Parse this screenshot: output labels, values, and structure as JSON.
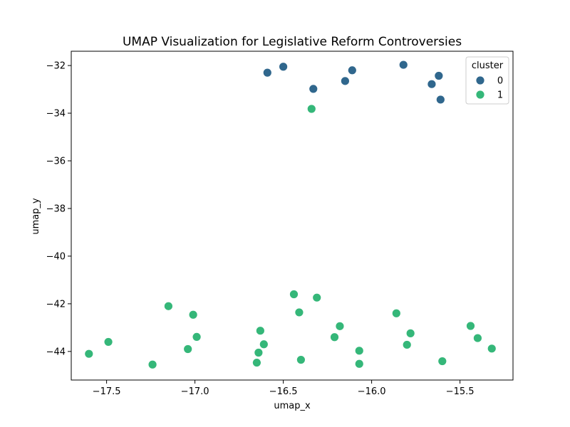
{
  "chart_data": {
    "type": "scatter",
    "title": "UMAP Visualization for Legislative Reform Controversies",
    "xlabel": "umap_x",
    "ylabel": "umap_y",
    "xlim": [
      -17.7,
      -15.2
    ],
    "ylim": [
      -45.2,
      -31.4
    ],
    "xticks": [
      -17.5,
      -17.0,
      -16.5,
      -16.0,
      -15.5
    ],
    "xtick_labels": [
      "−17.5",
      "−17.0",
      "−16.5",
      "−16.0",
      "−15.5"
    ],
    "yticks": [
      -44,
      -42,
      -40,
      -38,
      -36,
      -34,
      -32
    ],
    "ytick_labels": [
      "−44",
      "−42",
      "−40",
      "−38",
      "−36",
      "−34",
      "−32"
    ],
    "grid": false,
    "legend": {
      "title": "cluster",
      "placement": "top-right"
    },
    "series": [
      {
        "name": "0",
        "color": "#30678d",
        "points": [
          [
            -16.59,
            -32.3
          ],
          [
            -16.5,
            -32.05
          ],
          [
            -16.33,
            -32.98
          ],
          [
            -16.15,
            -32.65
          ],
          [
            -16.11,
            -32.2
          ],
          [
            -15.82,
            -31.97
          ],
          [
            -15.66,
            -32.78
          ],
          [
            -15.62,
            -32.43
          ],
          [
            -15.61,
            -33.43
          ]
        ]
      },
      {
        "name": "1",
        "color": "#35b779",
        "points": [
          [
            -16.34,
            -33.82
          ],
          [
            -17.6,
            -44.1
          ],
          [
            -17.49,
            -43.6
          ],
          [
            -17.24,
            -44.55
          ],
          [
            -17.15,
            -42.1
          ],
          [
            -17.04,
            -43.9
          ],
          [
            -17.01,
            -42.46
          ],
          [
            -16.99,
            -43.39
          ],
          [
            -16.65,
            -44.47
          ],
          [
            -16.64,
            -44.05
          ],
          [
            -16.63,
            -43.13
          ],
          [
            -16.61,
            -43.7
          ],
          [
            -16.44,
            -41.6
          ],
          [
            -16.41,
            -42.36
          ],
          [
            -16.4,
            -44.35
          ],
          [
            -16.31,
            -41.74
          ],
          [
            -16.21,
            -43.4
          ],
          [
            -16.18,
            -42.94
          ],
          [
            -16.07,
            -43.97
          ],
          [
            -16.07,
            -44.52
          ],
          [
            -15.86,
            -42.4
          ],
          [
            -15.8,
            -43.72
          ],
          [
            -15.78,
            -43.24
          ],
          [
            -15.6,
            -44.41
          ],
          [
            -15.44,
            -42.93
          ],
          [
            -15.4,
            -43.44
          ],
          [
            -15.32,
            -43.88
          ]
        ]
      }
    ]
  }
}
